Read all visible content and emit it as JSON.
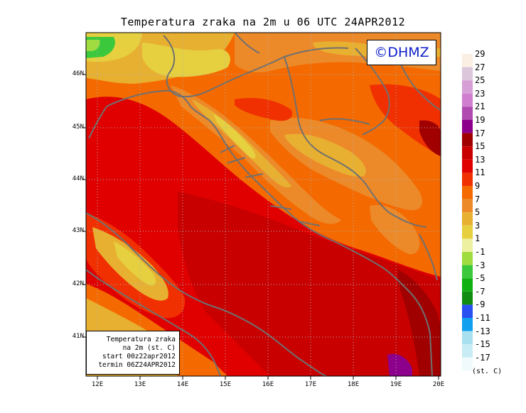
{
  "title": "Temperatura zraka na 2m u 06 UTC 24APR2012",
  "copyright": "©DHMZ",
  "info_box": {
    "line1": "Temperatura zraka",
    "line2": "na 2m (st. C)",
    "line3": "start 00z22apr2012",
    "line4": "termin 06Z24APR2012"
  },
  "lat_labels": [
    "46N",
    "45N",
    "44N",
    "43N",
    "42N",
    "41N"
  ],
  "lon_labels": [
    "12E",
    "13E",
    "14E",
    "15E",
    "16E",
    "17E",
    "18E",
    "19E",
    "20E"
  ],
  "scale": {
    "unit": "(st. C)",
    "labels": [
      "29",
      "27",
      "25",
      "23",
      "21",
      "19",
      "17",
      "15",
      "13",
      "11",
      "9",
      "7",
      "5",
      "3",
      "1",
      "-1",
      "-3",
      "-5",
      "-7",
      "-9",
      "-11",
      "-13",
      "-15",
      "-17"
    ],
    "colors": [
      "#fbeee2",
      "#dcc6dc",
      "#d6a0d6",
      "#d07ed0",
      "#b04ab0",
      "#8c008c",
      "#a00000",
      "#c80000",
      "#e00000",
      "#f03000",
      "#f46a00",
      "#ec8a2a",
      "#e8b030",
      "#e6d040",
      "#ecf0a0",
      "#a0dc40",
      "#3cc83c",
      "#10b010",
      "#108c10",
      "#2850f0",
      "#10a0f0",
      "#a8e0f0",
      "#c8ecf4",
      "#f0fafc"
    ]
  }
}
